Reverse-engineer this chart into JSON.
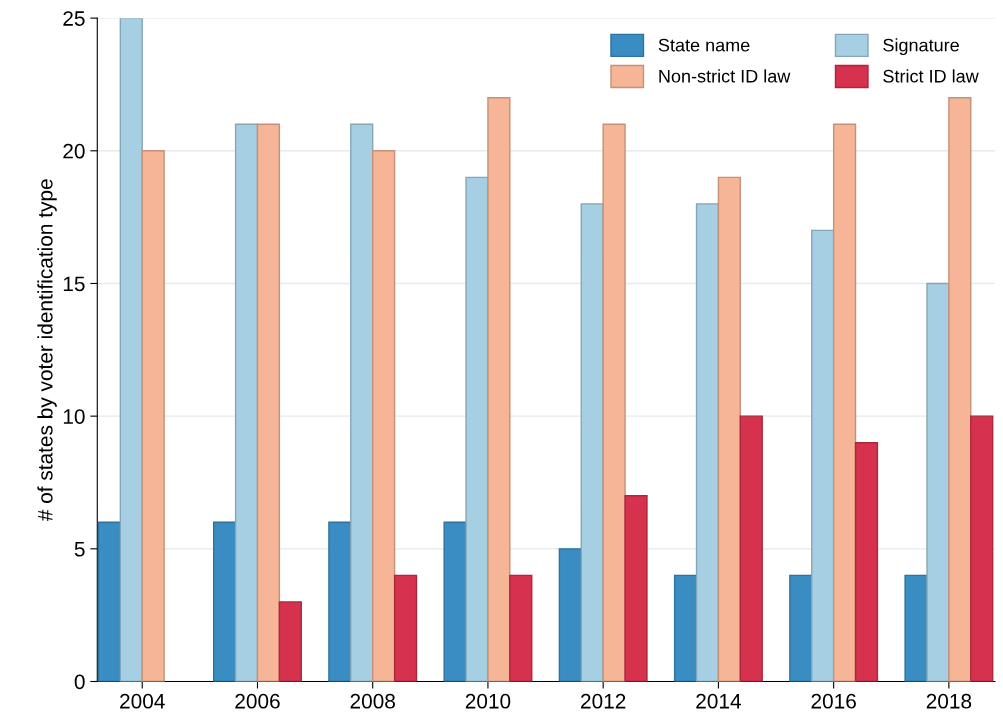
{
  "chart_data": {
    "type": "bar",
    "ylabel": "# of states by voter identification type",
    "categories": [
      "2004",
      "2006",
      "2008",
      "2010",
      "2012",
      "2014",
      "2016",
      "2018"
    ],
    "series": [
      {
        "name": "State name",
        "color": "#3a8dc3",
        "values": [
          6,
          6,
          6,
          6,
          5,
          4,
          4,
          4
        ]
      },
      {
        "name": "Signature",
        "color": "#a6cfe3",
        "values": [
          25,
          21,
          21,
          19,
          18,
          18,
          17,
          15
        ]
      },
      {
        "name": "Non-strict ID law",
        "color": "#f5b596",
        "values": [
          20,
          21,
          20,
          22,
          21,
          19,
          21,
          22
        ]
      },
      {
        "name": "Strict ID law",
        "color": "#d6314d",
        "values": [
          null,
          3,
          4,
          4,
          7,
          10,
          9,
          10
        ]
      }
    ],
    "ylim": [
      0,
      25
    ],
    "yticks": [
      0,
      5,
      10,
      15,
      20,
      25
    ],
    "grid": "y",
    "legend": "top right"
  }
}
